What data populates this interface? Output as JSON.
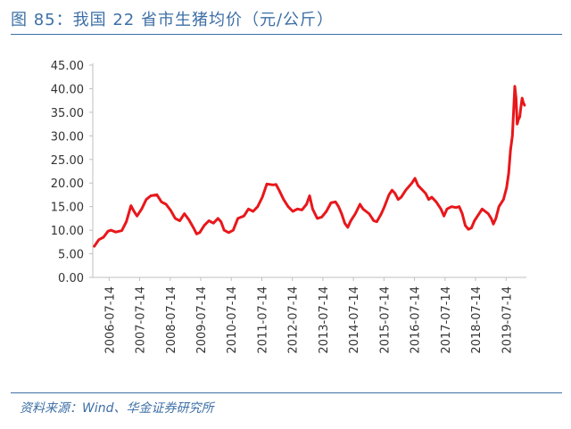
{
  "figure": {
    "title": "图 85：我国 22 省市生猪均价（元/公斤）",
    "source": "资料来源：Wind、华金证券研究所"
  },
  "colors": {
    "line": "#e8171b",
    "caption_blue": "#3d6fa6",
    "axis": "#bfbfbf",
    "text": "#333333"
  },
  "chart_data": {
    "type": "line",
    "title": "",
    "xlabel": "",
    "ylabel": "",
    "ylim": [
      0,
      45
    ],
    "yticks": [
      "0.00",
      "5.00",
      "10.00",
      "15.00",
      "20.00",
      "25.00",
      "30.00",
      "35.00",
      "40.00",
      "45.00"
    ],
    "xticks": [
      "2006-07-14",
      "2007-07-14",
      "2008-07-14",
      "2009-07-14",
      "2010-07-14",
      "2011-07-14",
      "2012-07-14",
      "2013-07-14",
      "2014-07-14",
      "2015-07-14",
      "2016-07-14",
      "2017-07-14",
      "2018-07-14",
      "2019-07-14"
    ],
    "grid": false,
    "legend": "none",
    "series": [
      {
        "values": [
          [
            2006.05,
            6.6
          ],
          [
            2006.2,
            8.0
          ],
          [
            2006.35,
            8.5
          ],
          [
            2006.5,
            9.8
          ],
          [
            2006.6,
            10.0
          ],
          [
            2006.75,
            9.6
          ],
          [
            2006.95,
            9.9
          ],
          [
            2007.1,
            11.8
          ],
          [
            2007.25,
            15.2
          ],
          [
            2007.35,
            14.0
          ],
          [
            2007.45,
            13.0
          ],
          [
            2007.6,
            14.5
          ],
          [
            2007.75,
            16.5
          ],
          [
            2007.9,
            17.3
          ],
          [
            2008.1,
            17.5
          ],
          [
            2008.25,
            16.0
          ],
          [
            2008.4,
            15.5
          ],
          [
            2008.55,
            14.2
          ],
          [
            2008.7,
            12.5
          ],
          [
            2008.85,
            12.0
          ],
          [
            2009.0,
            13.5
          ],
          [
            2009.15,
            12.2
          ],
          [
            2009.3,
            10.5
          ],
          [
            2009.4,
            9.2
          ],
          [
            2009.5,
            9.5
          ],
          [
            2009.65,
            11.0
          ],
          [
            2009.8,
            12.0
          ],
          [
            2009.95,
            11.5
          ],
          [
            2010.1,
            12.5
          ],
          [
            2010.2,
            11.8
          ],
          [
            2010.3,
            10.0
          ],
          [
            2010.45,
            9.5
          ],
          [
            2010.6,
            10.0
          ],
          [
            2010.75,
            12.5
          ],
          [
            2010.95,
            13.0
          ],
          [
            2011.1,
            14.5
          ],
          [
            2011.25,
            14.0
          ],
          [
            2011.4,
            15.0
          ],
          [
            2011.55,
            17.0
          ],
          [
            2011.7,
            19.8
          ],
          [
            2011.9,
            19.6
          ],
          [
            2012.0,
            19.7
          ],
          [
            2012.1,
            18.5
          ],
          [
            2012.25,
            16.5
          ],
          [
            2012.4,
            15.0
          ],
          [
            2012.55,
            14.0
          ],
          [
            2012.7,
            14.5
          ],
          [
            2012.85,
            14.3
          ],
          [
            2013.0,
            15.5
          ],
          [
            2013.1,
            17.3
          ],
          [
            2013.2,
            14.5
          ],
          [
            2013.35,
            12.5
          ],
          [
            2013.5,
            12.8
          ],
          [
            2013.65,
            14.0
          ],
          [
            2013.8,
            15.8
          ],
          [
            2013.95,
            16.0
          ],
          [
            2014.05,
            15.0
          ],
          [
            2014.15,
            13.5
          ],
          [
            2014.25,
            11.5
          ],
          [
            2014.35,
            10.6
          ],
          [
            2014.45,
            12.0
          ],
          [
            2014.6,
            13.5
          ],
          [
            2014.75,
            15.5
          ],
          [
            2014.85,
            14.5
          ],
          [
            2014.95,
            14.0
          ],
          [
            2015.05,
            13.5
          ],
          [
            2015.2,
            12.0
          ],
          [
            2015.3,
            11.8
          ],
          [
            2015.45,
            13.5
          ],
          [
            2015.55,
            15.0
          ],
          [
            2015.7,
            17.5
          ],
          [
            2015.8,
            18.5
          ],
          [
            2015.9,
            17.8
          ],
          [
            2016.0,
            16.5
          ],
          [
            2016.1,
            17.0
          ],
          [
            2016.25,
            18.5
          ],
          [
            2016.45,
            20.0
          ],
          [
            2016.55,
            21.0
          ],
          [
            2016.65,
            19.5
          ],
          [
            2016.8,
            18.5
          ],
          [
            2016.9,
            17.8
          ],
          [
            2017.0,
            16.5
          ],
          [
            2017.1,
            17.0
          ],
          [
            2017.25,
            16.0
          ],
          [
            2017.4,
            14.5
          ],
          [
            2017.5,
            13.0
          ],
          [
            2017.6,
            14.5
          ],
          [
            2017.75,
            15.0
          ],
          [
            2017.9,
            14.8
          ],
          [
            2018.0,
            15.0
          ],
          [
            2018.1,
            13.5
          ],
          [
            2018.2,
            11.0
          ],
          [
            2018.3,
            10.2
          ],
          [
            2018.4,
            10.5
          ],
          [
            2018.5,
            12.0
          ],
          [
            2018.65,
            13.5
          ],
          [
            2018.75,
            14.5
          ],
          [
            2018.85,
            14.0
          ],
          [
            2018.95,
            13.5
          ],
          [
            2019.05,
            12.5
          ],
          [
            2019.12,
            11.3
          ],
          [
            2019.2,
            12.5
          ],
          [
            2019.3,
            15.0
          ],
          [
            2019.45,
            16.5
          ],
          [
            2019.55,
            19.0
          ],
          [
            2019.62,
            22.0
          ],
          [
            2019.68,
            27.0
          ],
          [
            2019.74,
            30.0
          ],
          [
            2019.78,
            35.0
          ],
          [
            2019.82,
            40.5
          ],
          [
            2019.86,
            38.0
          ],
          [
            2019.9,
            32.5
          ],
          [
            2019.94,
            33.5
          ],
          [
            2019.98,
            34.0
          ],
          [
            2020.02,
            36.0
          ],
          [
            2020.06,
            38.0
          ],
          [
            2020.1,
            37.0
          ],
          [
            2020.14,
            36.5
          ]
        ]
      }
    ]
  }
}
